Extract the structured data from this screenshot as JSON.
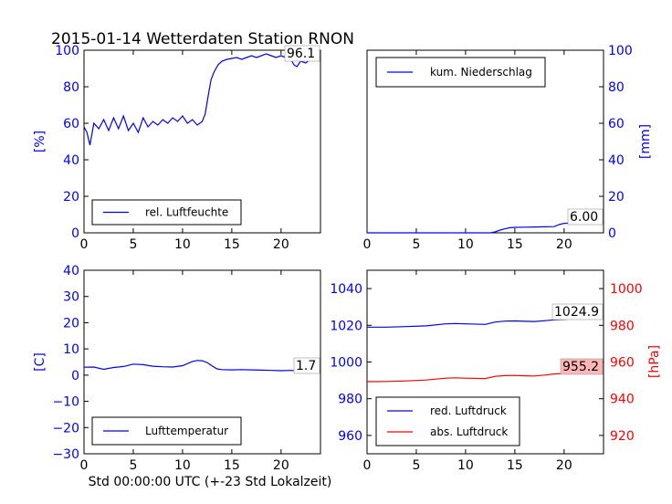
{
  "title": "2015-01-14 Wetterdaten Station RNON",
  "xlabel": "Std 00:00:00 UTC (+-23 Std Lokalzeit)",
  "colors": {
    "blue": "#0000ff",
    "red": "#ff0000",
    "black": "#000000",
    "pink": "#ffb6b6"
  },
  "chart_data": [
    {
      "type": "line",
      "name": "humidity",
      "ylabel": "[%]",
      "ylim": [
        0,
        100
      ],
      "yticks": [
        "0",
        "20",
        "40",
        "60",
        "80",
        "100"
      ],
      "xlim": [
        0,
        24
      ],
      "xticks": [
        "0",
        "5",
        "10",
        "15",
        "20"
      ],
      "legend": "lower-center",
      "annotation": "96.1",
      "series": [
        {
          "name": "rel. Luftfeuchte",
          "x": [
            0,
            0.3,
            0.6,
            1,
            1.5,
            2,
            2.5,
            3,
            3.5,
            4,
            4.5,
            5,
            5.5,
            6,
            6.5,
            7,
            7.5,
            8,
            8.5,
            9,
            9.5,
            10,
            10.5,
            11,
            11.5,
            12,
            12.3,
            12.6,
            12.9,
            13.2,
            13.6,
            14,
            14.5,
            15,
            15.5,
            16,
            16.5,
            17,
            17.5,
            18,
            18.5,
            19,
            19.5,
            20,
            20.5,
            21,
            21.3,
            21.6,
            22,
            22.5,
            23,
            23.5,
            24
          ],
          "y": [
            58,
            55,
            48,
            60,
            57,
            62,
            56,
            63,
            57,
            64,
            56,
            60,
            55,
            63,
            58,
            61,
            59,
            62,
            60,
            63,
            61,
            64,
            60,
            62,
            59,
            61,
            65,
            75,
            84,
            88,
            92,
            94,
            95,
            95.5,
            96,
            95,
            96,
            97,
            96,
            97,
            98,
            97,
            96,
            97,
            96,
            95,
            92,
            91,
            94,
            93,
            95,
            96,
            96.1
          ]
        }
      ]
    },
    {
      "type": "line",
      "name": "precipitation",
      "ylabel": "[mm]",
      "ylim": [
        0,
        100
      ],
      "yticks": [
        "0",
        "20",
        "40",
        "60",
        "80",
        "100"
      ],
      "xlim": [
        0,
        24
      ],
      "xticks": [
        "0",
        "5",
        "10",
        "15",
        "20"
      ],
      "legend": "upper-left",
      "annotation": "6.00",
      "series": [
        {
          "name": "kum. Niederschlag",
          "x": [
            0,
            5,
            10,
            12.5,
            13,
            13.5,
            14,
            14.5,
            15,
            16,
            17,
            18,
            19,
            19.5,
            20,
            21,
            22,
            23,
            24
          ],
          "y": [
            0,
            0,
            0,
            0,
            0.5,
            1.5,
            2.2,
            2.8,
            3,
            3.1,
            3.2,
            3.3,
            3.4,
            4.5,
            5.2,
            5.4,
            5.6,
            5.8,
            6.0
          ]
        }
      ]
    },
    {
      "type": "line",
      "name": "temperature",
      "ylabel": "[C]",
      "ylim": [
        -30,
        40
      ],
      "yticks": [
        "−30",
        "−20",
        "−10",
        "0",
        "10",
        "20",
        "30",
        "40"
      ],
      "xlim": [
        0,
        24
      ],
      "xticks": [
        "0",
        "5",
        "10",
        "15",
        "20"
      ],
      "legend": "lower-center",
      "annotation": "1.7",
      "series": [
        {
          "name": "Lufttemperatur",
          "x": [
            0,
            1,
            2,
            3,
            4,
            5,
            6,
            7,
            8,
            9,
            10,
            11,
            11.5,
            12,
            12.5,
            13,
            13.5,
            14,
            15,
            16,
            17,
            18,
            19,
            20,
            21,
            22,
            23,
            24
          ],
          "y": [
            3.0,
            3.1,
            2.2,
            2.9,
            3.3,
            4.2,
            4.0,
            3.4,
            3.2,
            3.1,
            3.6,
            5.2,
            5.6,
            5.5,
            4.8,
            3.5,
            2.4,
            2.1,
            2.0,
            2.1,
            2.0,
            1.9,
            1.8,
            1.7,
            1.8,
            1.6,
            1.7,
            1.7
          ]
        }
      ]
    },
    {
      "type": "line",
      "name": "pressure",
      "ylabel": "[hPa]",
      "ylim_left": [
        950,
        1050
      ],
      "ylim_right": [
        910,
        1010
      ],
      "yticks_left": [
        "960",
        "980",
        "1000",
        "1020",
        "1040"
      ],
      "yticks_right": [
        "920",
        "940",
        "960",
        "980",
        "1000"
      ],
      "xlim": [
        0,
        24
      ],
      "xticks": [
        "0",
        "5",
        "10",
        "15",
        "20"
      ],
      "legend": "lower-left",
      "annotation_red": "1024.9",
      "annotation_abs": "955.2",
      "series": [
        {
          "name": "red. Luftdruck",
          "axis": "left",
          "x": [
            0,
            2,
            4,
            6,
            8,
            9,
            10,
            12,
            13,
            14,
            15,
            16,
            17,
            18,
            19,
            20,
            21,
            22,
            23,
            24
          ],
          "y": [
            1019,
            1019,
            1019.3,
            1019.7,
            1020.8,
            1021,
            1020.8,
            1020.5,
            1021.8,
            1022.3,
            1022.4,
            1022.2,
            1022.1,
            1022.5,
            1023,
            1023.2,
            1023.8,
            1024.3,
            1024.6,
            1024.9
          ]
        },
        {
          "name": "abs. Luftdruck",
          "axis": "right",
          "x": [
            0,
            2,
            4,
            6,
            8,
            9,
            10,
            12,
            13,
            14,
            15,
            16,
            17,
            18,
            19,
            20,
            21,
            22,
            23,
            24
          ],
          "y": [
            949.3,
            949.4,
            949.7,
            950.2,
            951.2,
            951.4,
            951.2,
            951,
            952.2,
            952.6,
            952.7,
            952.5,
            952.4,
            952.9,
            953.5,
            953.8,
            954.2,
            954.6,
            954.9,
            955.2
          ]
        }
      ]
    }
  ]
}
